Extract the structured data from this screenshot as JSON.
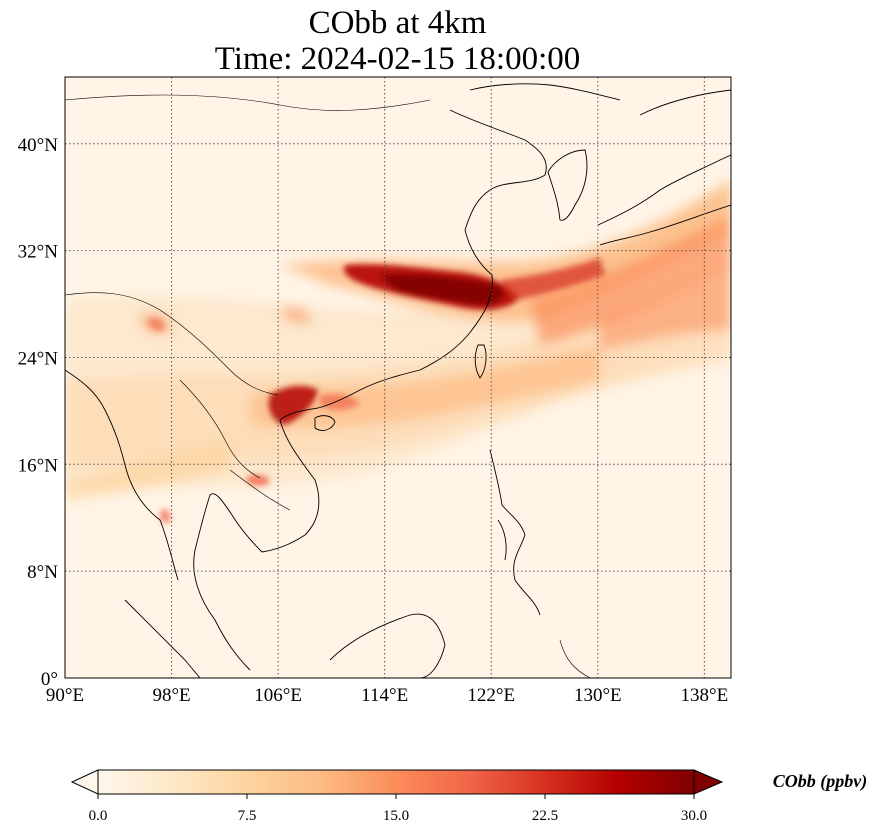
{
  "title": {
    "line1": "CObb at 4km",
    "line2": "Time: 2024-02-15 18:00:00"
  },
  "axes": {
    "lon_ticks": [
      "90°E",
      "98°E",
      "106°E",
      "114°E",
      "122°E",
      "130°E",
      "138°E"
    ],
    "lat_ticks": [
      "0°",
      "8°N",
      "16°N",
      "24°N",
      "32°N",
      "40°N"
    ],
    "lon_values": [
      90,
      98,
      106,
      114,
      122,
      130,
      138
    ],
    "lat_values": [
      0,
      8,
      16,
      24,
      32,
      40
    ],
    "lon_range": [
      90,
      140
    ],
    "lat_range": [
      0,
      45
    ],
    "gridlines": true
  },
  "colorbar": {
    "label": "CObb (ppbv)",
    "ticks": [
      "0.0",
      "7.5",
      "15.0",
      "22.5",
      "30.0"
    ],
    "tick_values": [
      0,
      7.5,
      15,
      22.5,
      30
    ],
    "range": [
      0,
      30
    ],
    "extend": "both",
    "colormap": [
      "#fff7ec",
      "#fee8c8",
      "#fdd49e",
      "#fdbb84",
      "#fc8d59",
      "#ef6548",
      "#d7301f",
      "#b30000",
      "#7f0000"
    ]
  }
}
